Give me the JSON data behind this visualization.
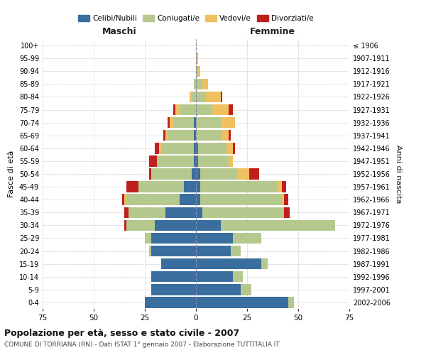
{
  "age_groups": [
    "0-4",
    "5-9",
    "10-14",
    "15-19",
    "20-24",
    "25-29",
    "30-34",
    "35-39",
    "40-44",
    "45-49",
    "50-54",
    "55-59",
    "60-64",
    "65-69",
    "70-74",
    "75-79",
    "80-84",
    "85-89",
    "90-94",
    "95-99",
    "100+"
  ],
  "birth_years": [
    "2002-2006",
    "1997-2001",
    "1992-1996",
    "1987-1991",
    "1982-1986",
    "1977-1981",
    "1972-1976",
    "1967-1971",
    "1962-1966",
    "1957-1961",
    "1952-1956",
    "1947-1951",
    "1942-1946",
    "1937-1941",
    "1932-1936",
    "1927-1931",
    "1922-1926",
    "1917-1921",
    "1912-1916",
    "1907-1911",
    "≤ 1906"
  ],
  "male": {
    "celibi": [
      25,
      22,
      22,
      17,
      22,
      22,
      20,
      15,
      8,
      6,
      2,
      1,
      1,
      1,
      1,
      0,
      0,
      0,
      0,
      0,
      0
    ],
    "coniugati": [
      0,
      0,
      0,
      0,
      1,
      3,
      14,
      18,
      26,
      22,
      20,
      18,
      16,
      13,
      10,
      8,
      2,
      1,
      0,
      0,
      0
    ],
    "vedovi": [
      0,
      0,
      0,
      0,
      0,
      0,
      0,
      0,
      1,
      0,
      0,
      0,
      1,
      1,
      2,
      2,
      1,
      0,
      0,
      0,
      0
    ],
    "divorziati": [
      0,
      0,
      0,
      0,
      0,
      0,
      1,
      2,
      1,
      6,
      1,
      4,
      2,
      1,
      1,
      1,
      0,
      0,
      0,
      0,
      0
    ]
  },
  "female": {
    "nubili": [
      45,
      22,
      18,
      32,
      17,
      18,
      12,
      3,
      2,
      2,
      2,
      1,
      1,
      0,
      0,
      0,
      0,
      0,
      0,
      0,
      0
    ],
    "coniugate": [
      3,
      5,
      5,
      3,
      5,
      14,
      56,
      40,
      40,
      38,
      18,
      15,
      14,
      13,
      12,
      8,
      5,
      3,
      1,
      0,
      0
    ],
    "vedove": [
      0,
      0,
      0,
      0,
      0,
      0,
      0,
      0,
      1,
      2,
      6,
      2,
      3,
      3,
      7,
      8,
      7,
      3,
      1,
      1,
      0
    ],
    "divorziate": [
      0,
      0,
      0,
      0,
      0,
      0,
      0,
      3,
      2,
      2,
      5,
      0,
      1,
      1,
      0,
      2,
      1,
      0,
      0,
      0,
      0
    ]
  },
  "colors": {
    "celibi": "#3a6e9f",
    "coniugati": "#b5c98e",
    "vedovi": "#f0c060",
    "divorziati": "#c0201c"
  },
  "xlim": 75,
  "title": "Popolazione per età, sesso e stato civile - 2007",
  "subtitle": "COMUNE DI TORRIANA (RN) - Dati ISTAT 1° gennaio 2007 - Elaborazione TUTTITALIA.IT",
  "ylabel_left": "Fasce di età",
  "ylabel_right": "Anni di nascita",
  "xlabel_left": "Maschi",
  "xlabel_right": "Femmine"
}
